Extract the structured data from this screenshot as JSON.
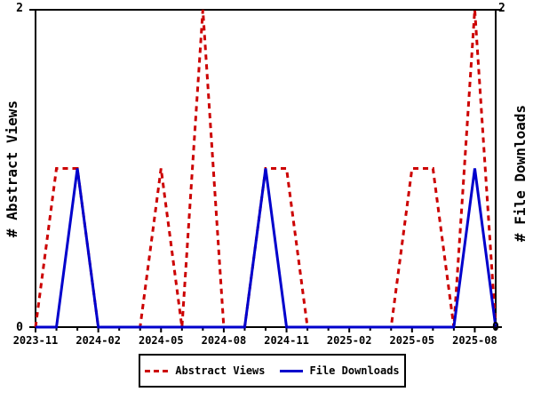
{
  "chart_data": {
    "type": "line",
    "x": [
      "2023-11",
      "2023-12",
      "2024-01",
      "2024-02",
      "2024-03",
      "2024-04",
      "2024-05",
      "2024-06",
      "2024-07",
      "2024-08",
      "2024-09",
      "2024-10",
      "2024-11",
      "2024-12",
      "2025-01",
      "2025-02",
      "2025-03",
      "2025-04",
      "2025-05",
      "2025-06",
      "2025-07",
      "2025-08",
      "2025-09"
    ],
    "series": [
      {
        "name": "Abstract Views",
        "axis": "left",
        "color": "#cc0000",
        "line_style": "dashed",
        "values": [
          0,
          1,
          1,
          0,
          0,
          0,
          1,
          0,
          2,
          0,
          0,
          1,
          1,
          0,
          0,
          0,
          0,
          0,
          1,
          1,
          0,
          2,
          0
        ]
      },
      {
        "name": "File Downloads",
        "axis": "right",
        "color": "#0000cc",
        "line_style": "solid",
        "values": [
          0,
          0,
          1,
          0,
          0,
          0,
          0,
          0,
          0,
          0,
          0,
          1,
          0,
          0,
          0,
          0,
          0,
          0,
          0,
          0,
          0,
          1,
          0
        ]
      }
    ],
    "ylabel_left": "# Abstract Views",
    "ylabel_right": "# File Downloads",
    "ylim": [
      0,
      2
    ],
    "y_tick_values": [
      0,
      2
    ],
    "x_major_tick_labels": [
      "2023-11",
      "2024-02",
      "2024-05",
      "2024-08",
      "2024-11",
      "2025-02",
      "2025-05",
      "2025-08"
    ],
    "legend_position": "bottom-center",
    "grid": false,
    "title": ""
  },
  "axes": {
    "y_tick_top": "2",
    "y_tick_bottom": "0",
    "left_title": "# Abstract Views",
    "right_title": "# File Downloads"
  },
  "legend": {
    "items": [
      {
        "label": "Abstract Views",
        "color": "#cc0000",
        "style": "dashed"
      },
      {
        "label": "File Downloads",
        "color": "#0000cc",
        "style": "solid"
      }
    ]
  },
  "colors": {
    "abstract_views": "#cc0000",
    "file_downloads": "#0000cc",
    "axis": "#000000",
    "background": "#ffffff"
  }
}
